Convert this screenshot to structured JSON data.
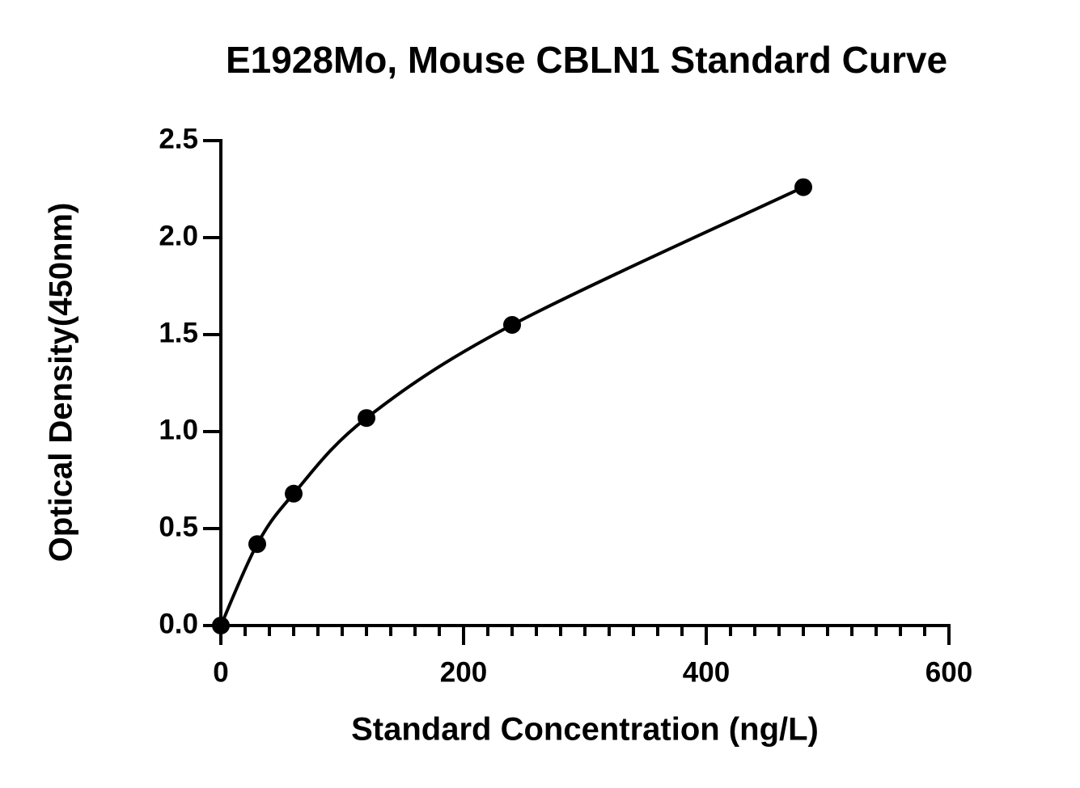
{
  "chart_data": {
    "type": "scatter",
    "title": "E1928Mo, Mouse CBLN1 Standard Curve",
    "x_label": "Standard Concentration (ng/L)",
    "y_label": "Optical Density(450nm)",
    "x": [
      0,
      30,
      60,
      120,
      240,
      480
    ],
    "values": [
      0.0,
      0.42,
      0.68,
      1.07,
      1.55,
      2.26
    ],
    "color": "#000000",
    "xlim": [
      0,
      600
    ],
    "xticks": [
      0,
      200,
      400,
      600
    ],
    "xminorticks": [
      20,
      40,
      60,
      80,
      100,
      120,
      140,
      160,
      180,
      220,
      240,
      260,
      280,
      300,
      320,
      340,
      360,
      380,
      420,
      440,
      460,
      480,
      500,
      520,
      540,
      560,
      580
    ],
    "ylim": [
      0,
      2.5
    ],
    "yticks": [
      {
        "value": 0,
        "label": "0.0"
      },
      0.5,
      {
        "value": 1,
        "label": "1.0"
      },
      1.5,
      {
        "value": 2,
        "label": "2.0"
      },
      2.5
    ]
  }
}
